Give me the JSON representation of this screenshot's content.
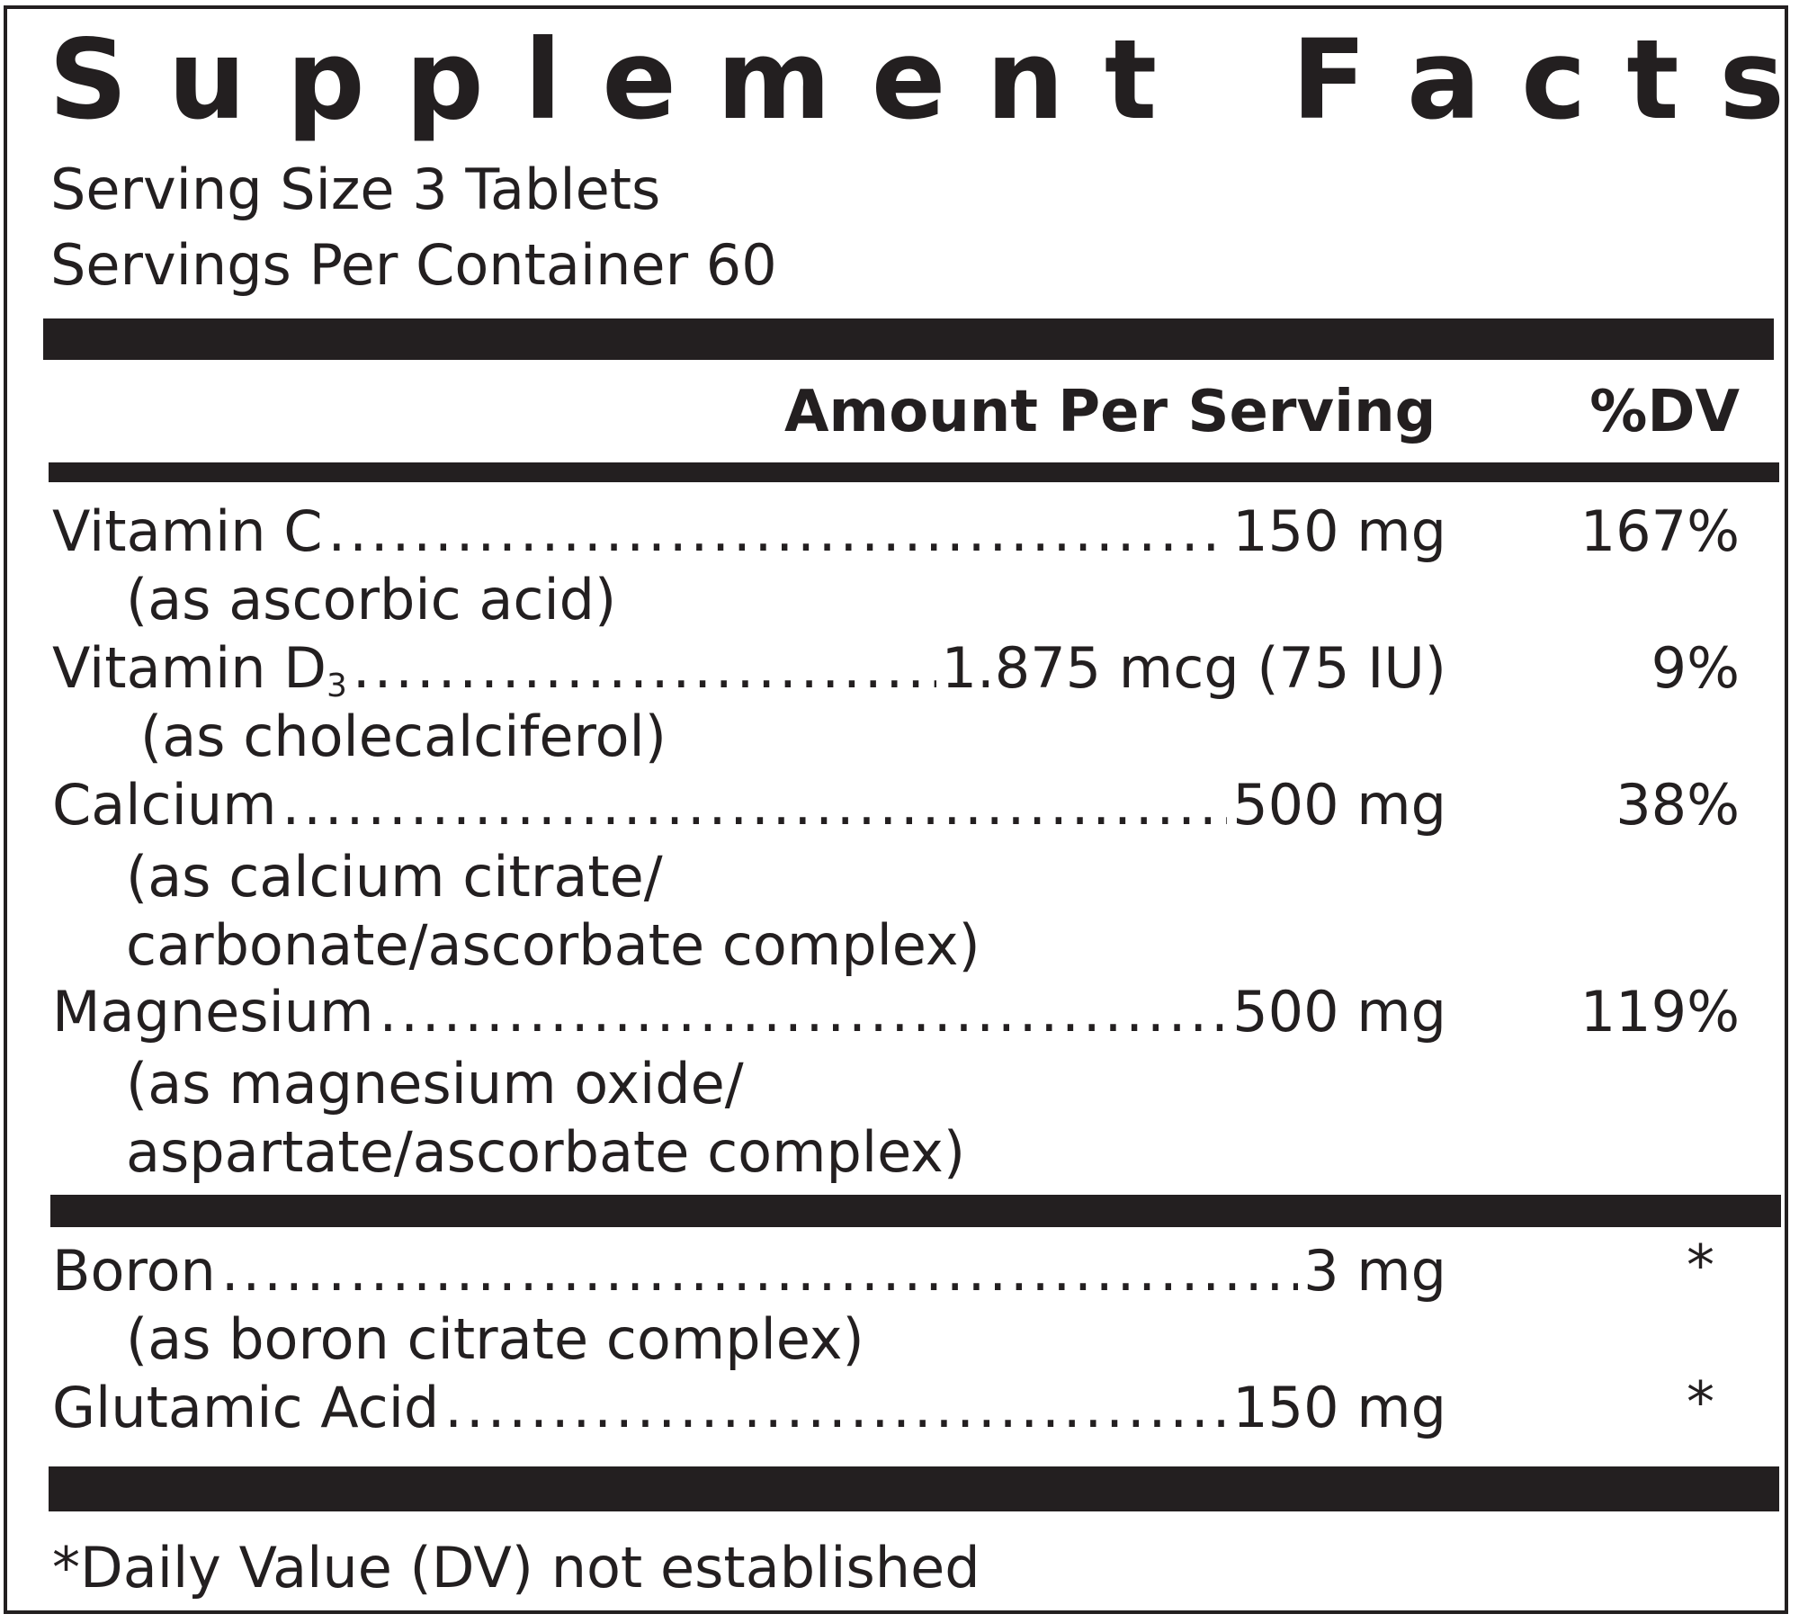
{
  "title_letters": [
    "S",
    "u",
    "p",
    "p",
    "l",
    "e",
    "m",
    "e",
    "n",
    "t",
    "F",
    "a",
    "c",
    "t",
    "s"
  ],
  "serving_size": "Serving Size 3 Tablets",
  "servings_per_container": "Servings Per Container 60",
  "header": {
    "amount_per_serving": "Amount Per Serving",
    "dv": "%DV"
  },
  "nutrients": [
    {
      "name": "Vitamin C",
      "amount": "150 mg",
      "dv": "167%",
      "source": [
        "(as ascorbic acid)"
      ]
    },
    {
      "name": "Vitamin D",
      "subscript": "3",
      "amount": "1.875 mcg (75 IU)",
      "dv": "9%",
      "source": [
        "(as cholecalciferol)"
      ]
    },
    {
      "name": "Calcium",
      "amount": "500 mg",
      "dv": "38%",
      "source": [
        "(as calcium citrate/",
        "carbonate/ascorbate complex)"
      ]
    },
    {
      "name": "Magnesium",
      "amount": "500 mg",
      "dv": "119%",
      "source": [
        "(as magnesium oxide/",
        "aspartate/ascorbate complex)"
      ]
    },
    {
      "name": "Boron",
      "amount": "3 mg",
      "dv": "*",
      "source": [
        "(as boron citrate complex)"
      ]
    },
    {
      "name": "Glutamic Acid",
      "amount": "150 mg",
      "dv": "*",
      "source": []
    }
  ],
  "dot_leader": "........................................................................................................................",
  "footnote": "*Daily Value (DV) not established",
  "colors": {
    "ink": "#231f20",
    "background": "#ffffff"
  }
}
